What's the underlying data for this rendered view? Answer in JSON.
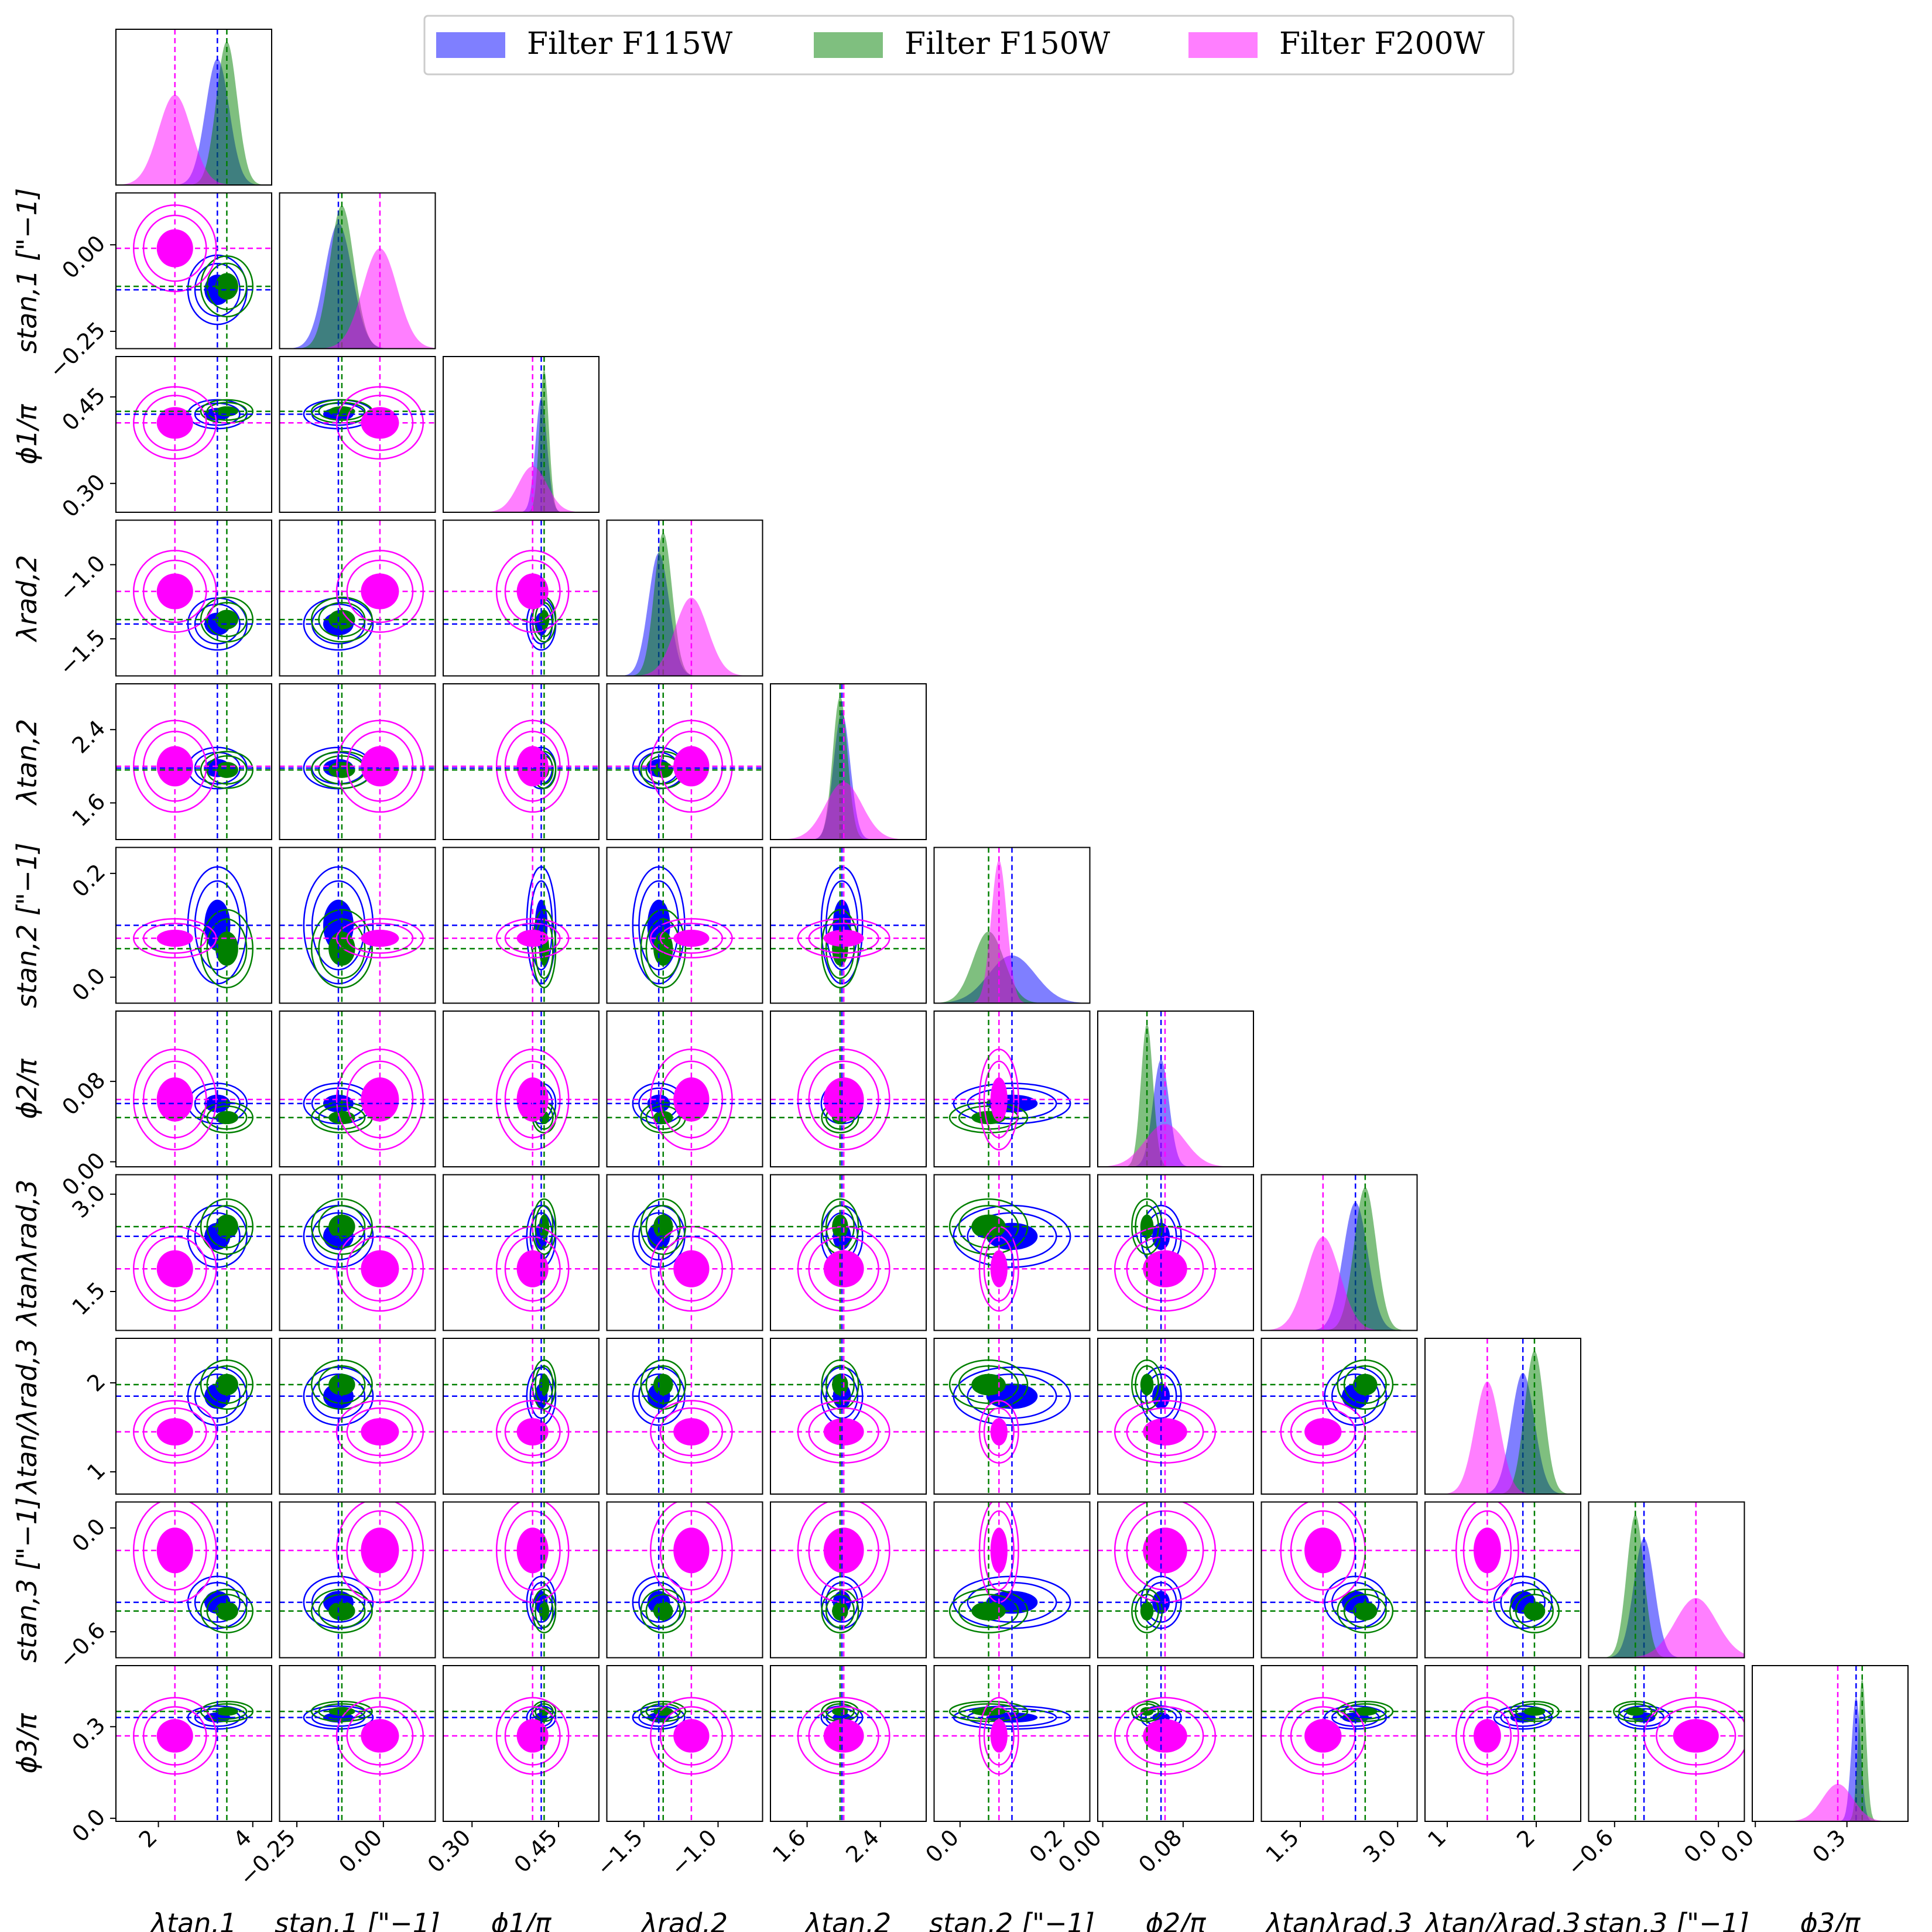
{
  "chart_data": {
    "type": "corner",
    "legend": {
      "placement": "top-center",
      "entries": [
        {
          "label": "Filter F115W",
          "color": "#0000ff"
        },
        {
          "label": "Filter F150W",
          "color": "#008000"
        },
        {
          "label": "Filter F200W",
          "color": "#ff00ff"
        }
      ]
    },
    "parameters": [
      {
        "label": "λtan,1",
        "row_label": "",
        "range": [
          1.1,
          4.4
        ],
        "ticks": [
          2,
          4
        ],
        "tick_labels": [
          "2",
          "4"
        ]
      },
      {
        "label": "stan,1 [\"−1]",
        "row_label": "stan,1 [\"−1]",
        "range": [
          -0.3,
          0.15
        ],
        "ticks": [
          -0.25,
          0.0
        ],
        "tick_labels": [
          "−0.25",
          "0.00"
        ]
      },
      {
        "label": "ϕ1/π",
        "row_label": "ϕ1/π",
        "range": [
          0.25,
          0.52
        ],
        "ticks": [
          0.3,
          0.45
        ],
        "tick_labels": [
          "0.30",
          "0.45"
        ]
      },
      {
        "label": "λrad,2",
        "row_label": "λrad,2",
        "range": [
          -1.75,
          -0.7
        ],
        "ticks": [
          -1.5,
          -1.0
        ],
        "tick_labels": [
          "−1.5",
          "−1.0"
        ]
      },
      {
        "label": "λtan,2",
        "row_label": "λtan,2",
        "range": [
          1.2,
          2.9
        ],
        "ticks": [
          1.6,
          2.4
        ],
        "tick_labels": [
          "1.6",
          "2.4"
        ]
      },
      {
        "label": "stan,2 [\"−1]",
        "row_label": "stan,2 [\"−1]",
        "range": [
          -0.05,
          0.25
        ],
        "ticks": [
          0.0,
          0.2
        ],
        "tick_labels": [
          "0.0",
          "0.2"
        ]
      },
      {
        "label": "ϕ2/π",
        "row_label": "ϕ2/π",
        "range": [
          -0.005,
          0.15
        ],
        "ticks": [
          0.0,
          0.08
        ],
        "tick_labels": [
          "0.00",
          "0.08"
        ]
      },
      {
        "label": "λtanλrad,3",
        "row_label": "λtanλrad,3",
        "range": [
          0.9,
          3.3
        ],
        "ticks": [
          1.5,
          3.0
        ],
        "tick_labels": [
          "1.5",
          "3.0"
        ]
      },
      {
        "label": "λtan/λrad,3",
        "row_label": "λtan/λrad,3",
        "range": [
          0.75,
          2.5
        ],
        "ticks": [
          1,
          2
        ],
        "tick_labels": [
          "1",
          "2"
        ]
      },
      {
        "label": "stan,3 [\"−1]",
        "row_label": "stan,3 [\"−1]",
        "range": [
          -0.75,
          0.15
        ],
        "ticks": [
          -0.6,
          0.0
        ],
        "tick_labels": [
          "−0.6",
          "0.0"
        ]
      },
      {
        "label": "ϕ3/π",
        "row_label": "ϕ3/π",
        "range": [
          -0.01,
          0.5
        ],
        "ticks": [
          0.0,
          0.3
        ],
        "tick_labels": [
          "0.0",
          "0.3"
        ]
      }
    ],
    "series": [
      {
        "name": "Filter F115W",
        "color": "#0000ff",
        "truth": [
          3.25,
          -0.13,
          0.42,
          -1.4,
          1.98,
          0.1,
          0.058,
          2.35,
          1.85,
          -0.43,
          0.33
        ],
        "sigma": [
          0.25,
          0.04,
          0.01,
          0.07,
          0.09,
          0.045,
          0.008,
          0.19,
          0.13,
          0.06,
          0.015
        ]
      },
      {
        "name": "Filter F150W",
        "color": "#008000",
        "truth": [
          3.45,
          -0.12,
          0.425,
          -1.37,
          1.96,
          0.055,
          0.044,
          2.5,
          1.98,
          -0.48,
          0.35
        ],
        "sigma": [
          0.22,
          0.035,
          0.008,
          0.06,
          0.08,
          0.03,
          0.006,
          0.17,
          0.11,
          0.05,
          0.013
        ]
      },
      {
        "name": "Filter F200W",
        "color": "#ff00ff",
        "truth": [
          2.35,
          -0.01,
          0.405,
          -1.18,
          2.0,
          0.075,
          0.062,
          1.85,
          1.45,
          -0.13,
          0.27
        ],
        "sigma": [
          0.35,
          0.05,
          0.025,
          0.11,
          0.2,
          0.015,
          0.02,
          0.26,
          0.14,
          0.12,
          0.05
        ]
      }
    ]
  }
}
